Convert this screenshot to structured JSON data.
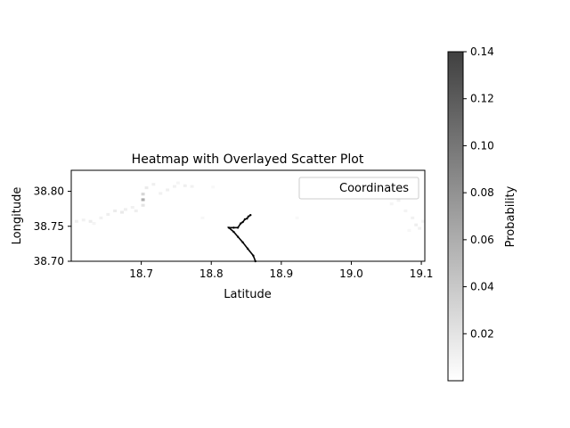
{
  "chart_data": {
    "type": "heatmap",
    "title": "Heatmap with Overlayed Scatter Plot",
    "xlabel": "Latitude",
    "ylabel": "Longitude",
    "xlim": [
      18.6,
      19.105
    ],
    "ylim": [
      38.7,
      38.83
    ],
    "xticks": [
      18.7,
      18.8,
      18.9,
      19.0,
      19.1
    ],
    "xtick_labels": [
      "18.7",
      "18.8",
      "18.9",
      "19.0",
      "19.1"
    ],
    "yticks": [
      38.7,
      38.75,
      38.8
    ],
    "ytick_labels": [
      "38.70",
      "38.75",
      "38.80"
    ],
    "legend": {
      "placement": "top-right",
      "entries": [
        "Coordinates"
      ]
    },
    "colorbar": {
      "label": "Probability",
      "colormap": "greys",
      "range": [
        0.0,
        0.14
      ],
      "ticks": [
        0.02,
        0.04,
        0.06,
        0.08,
        0.1,
        0.12,
        0.14
      ],
      "tick_labels": [
        "0.02",
        "0.04",
        "0.06",
        "0.08",
        "0.10",
        "0.12",
        "0.14"
      ]
    },
    "heat_cells": [
      {
        "x": 18.605,
        "y": 38.755,
        "v": 0.012
      },
      {
        "x": 18.615,
        "y": 38.757,
        "v": 0.01
      },
      {
        "x": 18.625,
        "y": 38.755,
        "v": 0.014
      },
      {
        "x": 18.63,
        "y": 38.752,
        "v": 0.008
      },
      {
        "x": 18.64,
        "y": 38.76,
        "v": 0.01
      },
      {
        "x": 18.65,
        "y": 38.765,
        "v": 0.012
      },
      {
        "x": 18.66,
        "y": 38.77,
        "v": 0.014
      },
      {
        "x": 18.67,
        "y": 38.768,
        "v": 0.016
      },
      {
        "x": 18.675,
        "y": 38.772,
        "v": 0.012
      },
      {
        "x": 18.685,
        "y": 38.775,
        "v": 0.01
      },
      {
        "x": 18.69,
        "y": 38.77,
        "v": 0.012
      },
      {
        "x": 18.7,
        "y": 38.778,
        "v": 0.02
      },
      {
        "x": 18.7,
        "y": 38.786,
        "v": 0.06
      },
      {
        "x": 18.7,
        "y": 38.794,
        "v": 0.03
      },
      {
        "x": 18.705,
        "y": 38.803,
        "v": 0.015
      },
      {
        "x": 18.715,
        "y": 38.808,
        "v": 0.012
      },
      {
        "x": 18.725,
        "y": 38.795,
        "v": 0.01
      },
      {
        "x": 18.735,
        "y": 38.8,
        "v": 0.012
      },
      {
        "x": 18.745,
        "y": 38.805,
        "v": 0.01
      },
      {
        "x": 18.75,
        "y": 38.81,
        "v": 0.008
      },
      {
        "x": 18.76,
        "y": 38.806,
        "v": 0.012
      },
      {
        "x": 18.77,
        "y": 38.805,
        "v": 0.01
      },
      {
        "x": 18.785,
        "y": 38.76,
        "v": 0.006
      },
      {
        "x": 18.8,
        "y": 38.804,
        "v": 0.005
      },
      {
        "x": 18.92,
        "y": 38.76,
        "v": 0.005
      },
      {
        "x": 19.055,
        "y": 38.78,
        "v": 0.008
      },
      {
        "x": 19.065,
        "y": 38.785,
        "v": 0.01
      },
      {
        "x": 19.075,
        "y": 38.77,
        "v": 0.008
      },
      {
        "x": 19.085,
        "y": 38.76,
        "v": 0.01
      },
      {
        "x": 19.09,
        "y": 38.75,
        "v": 0.012
      },
      {
        "x": 19.095,
        "y": 38.745,
        "v": 0.01
      },
      {
        "x": 19.1,
        "y": 38.755,
        "v": 0.008
      },
      {
        "x": 19.08,
        "y": 38.742,
        "v": 0.006
      }
    ],
    "series": [
      {
        "type": "scatter-line",
        "x": [
          18.863,
          18.86,
          18.852,
          18.845,
          18.838,
          18.832,
          18.825,
          18.832,
          18.838,
          18.842,
          18.845,
          18.848,
          18.851,
          18.853,
          18.856
        ],
        "y": [
          38.7,
          38.708,
          38.718,
          38.727,
          38.735,
          38.742,
          38.748,
          38.748,
          38.748,
          38.754,
          38.756,
          38.76,
          38.761,
          38.764,
          38.766
        ]
      }
    ]
  }
}
